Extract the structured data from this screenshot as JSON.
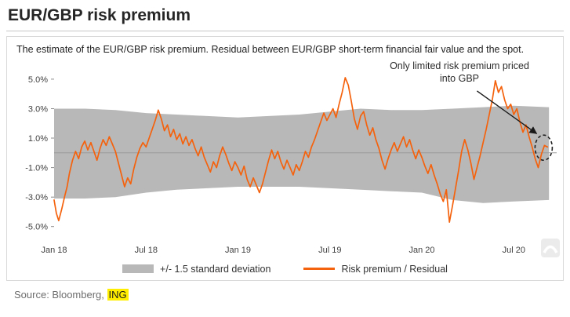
{
  "title": "EUR/GBP risk premium",
  "description": "The estimate of the EUR/GBP risk premium. Residual between EUR/GBP short-term financial fair value and the spot.",
  "source": {
    "prefix": "Source: Bloomberg, ",
    "link_label": "ING"
  },
  "colors": {
    "band": "#b8b8b8",
    "line": "#f5620d",
    "zero_line": "#9a9a9a",
    "axis_text": "#404040",
    "annotation": "#1a1a1a",
    "highlight_yellow": "#ffee00"
  },
  "chart_data": {
    "type": "line",
    "title": "EUR/GBP risk premium",
    "xlabel": "",
    "ylabel": "",
    "grid": false,
    "legend_position": "bottom",
    "x_axis": {
      "unit": "months since Jan 2018",
      "range": [
        0,
        32.8
      ],
      "ticks": [
        {
          "t": 0,
          "label": "Jan 18"
        },
        {
          "t": 6,
          "label": "Jul 18"
        },
        {
          "t": 12,
          "label": "Jan 19"
        },
        {
          "t": 18,
          "label": "Jul 19"
        },
        {
          "t": 24,
          "label": "Jan 20"
        },
        {
          "t": 30,
          "label": "Jul 20"
        }
      ]
    },
    "y_axis": {
      "unit": "%",
      "range": [
        -5.6,
        5.9
      ],
      "ticks": [
        {
          "v": 5,
          "label": "5.0%"
        },
        {
          "v": 3,
          "label": "3.0%"
        },
        {
          "v": 1,
          "label": "1.0%"
        },
        {
          "v": -1,
          "label": "-1.0%"
        },
        {
          "v": -3,
          "label": "-3.0%"
        },
        {
          "v": -5,
          "label": "-5.0%"
        }
      ]
    },
    "annotation": {
      "text": "Only limited risk premium priced into GBP",
      "arrow_from": [
        27.6,
        4.2
      ],
      "arrow_to": [
        31.5,
        1.3
      ],
      "circle": [
        31.95,
        0.35
      ]
    },
    "series": [
      {
        "name": "+/- 1.5 standard deviation",
        "type": "band",
        "color": "#b8b8b8",
        "points": [
          [
            0,
            -3.1,
            3.0
          ],
          [
            2,
            -3.1,
            3.0
          ],
          [
            4,
            -3.0,
            2.9
          ],
          [
            6,
            -2.7,
            2.7
          ],
          [
            8,
            -2.5,
            2.6
          ],
          [
            10,
            -2.4,
            2.5
          ],
          [
            12,
            -2.3,
            2.4
          ],
          [
            14,
            -2.3,
            2.5
          ],
          [
            16,
            -2.3,
            2.6
          ],
          [
            18,
            -2.4,
            2.8
          ],
          [
            20,
            -2.5,
            3.0
          ],
          [
            22,
            -2.6,
            2.9
          ],
          [
            24,
            -2.7,
            2.9
          ],
          [
            26,
            -3.2,
            3.0
          ],
          [
            28,
            -3.4,
            3.1
          ],
          [
            30,
            -3.3,
            3.2
          ],
          [
            32.3,
            -3.2,
            3.1
          ]
        ]
      },
      {
        "name": "Risk premium / Residual",
        "type": "line",
        "color": "#f5620d",
        "points": [
          [
            0,
            -3.2
          ],
          [
            0.15,
            -4.1
          ],
          [
            0.3,
            -4.6
          ],
          [
            0.5,
            -3.8
          ],
          [
            0.7,
            -2.9
          ],
          [
            0.85,
            -2.3
          ],
          [
            1.0,
            -1.4
          ],
          [
            1.2,
            -0.5
          ],
          [
            1.4,
            0.1
          ],
          [
            1.6,
            -0.4
          ],
          [
            1.8,
            0.4
          ],
          [
            2.0,
            0.8
          ],
          [
            2.2,
            0.2
          ],
          [
            2.4,
            0.7
          ],
          [
            2.6,
            0.1
          ],
          [
            2.8,
            -0.5
          ],
          [
            3.0,
            0.3
          ],
          [
            3.2,
            0.9
          ],
          [
            3.4,
            0.5
          ],
          [
            3.6,
            1.1
          ],
          [
            3.8,
            0.6
          ],
          [
            4.0,
            0.1
          ],
          [
            4.2,
            -0.7
          ],
          [
            4.4,
            -1.5
          ],
          [
            4.6,
            -2.3
          ],
          [
            4.8,
            -1.7
          ],
          [
            5.0,
            -2.1
          ],
          [
            5.2,
            -1.1
          ],
          [
            5.4,
            -0.3
          ],
          [
            5.6,
            0.3
          ],
          [
            5.8,
            0.7
          ],
          [
            6.0,
            0.4
          ],
          [
            6.2,
            1.0
          ],
          [
            6.4,
            1.6
          ],
          [
            6.6,
            2.2
          ],
          [
            6.8,
            2.9
          ],
          [
            7.0,
            2.3
          ],
          [
            7.2,
            1.5
          ],
          [
            7.4,
            1.9
          ],
          [
            7.6,
            1.1
          ],
          [
            7.8,
            1.6
          ],
          [
            8.0,
            0.9
          ],
          [
            8.2,
            1.3
          ],
          [
            8.4,
            0.6
          ],
          [
            8.6,
            1.1
          ],
          [
            8.8,
            0.5
          ],
          [
            9.0,
            0.9
          ],
          [
            9.2,
            0.3
          ],
          [
            9.4,
            -0.2
          ],
          [
            9.6,
            0.4
          ],
          [
            9.8,
            -0.3
          ],
          [
            10.0,
            -0.8
          ],
          [
            10.2,
            -1.3
          ],
          [
            10.4,
            -0.6
          ],
          [
            10.6,
            -1.0
          ],
          [
            10.8,
            -0.2
          ],
          [
            11.0,
            0.4
          ],
          [
            11.2,
            -0.1
          ],
          [
            11.4,
            -0.7
          ],
          [
            11.6,
            -1.2
          ],
          [
            11.8,
            -0.6
          ],
          [
            12.0,
            -1.0
          ],
          [
            12.2,
            -1.5
          ],
          [
            12.4,
            -0.9
          ],
          [
            12.6,
            -1.8
          ],
          [
            12.8,
            -2.3
          ],
          [
            13.0,
            -1.7
          ],
          [
            13.2,
            -2.2
          ],
          [
            13.4,
            -2.7
          ],
          [
            13.6,
            -2.1
          ],
          [
            13.8,
            -1.3
          ],
          [
            14.0,
            -0.5
          ],
          [
            14.2,
            0.2
          ],
          [
            14.4,
            -0.4
          ],
          [
            14.6,
            0.1
          ],
          [
            14.8,
            -0.6
          ],
          [
            15.0,
            -1.1
          ],
          [
            15.2,
            -0.5
          ],
          [
            15.4,
            -1.0
          ],
          [
            15.6,
            -1.5
          ],
          [
            15.8,
            -0.8
          ],
          [
            16.0,
            -1.2
          ],
          [
            16.2,
            -0.6
          ],
          [
            16.4,
            0.1
          ],
          [
            16.6,
            -0.3
          ],
          [
            16.8,
            0.4
          ],
          [
            17.0,
            0.9
          ],
          [
            17.2,
            1.5
          ],
          [
            17.4,
            2.1
          ],
          [
            17.6,
            2.7
          ],
          [
            17.8,
            2.2
          ],
          [
            18.0,
            2.6
          ],
          [
            18.2,
            3.0
          ],
          [
            18.4,
            2.4
          ],
          [
            18.6,
            3.3
          ],
          [
            18.8,
            4.1
          ],
          [
            19.0,
            5.1
          ],
          [
            19.2,
            4.6
          ],
          [
            19.4,
            3.5
          ],
          [
            19.6,
            2.3
          ],
          [
            19.8,
            1.6
          ],
          [
            20.0,
            2.5
          ],
          [
            20.2,
            2.8
          ],
          [
            20.4,
            1.9
          ],
          [
            20.6,
            1.2
          ],
          [
            20.8,
            1.7
          ],
          [
            21.0,
            0.9
          ],
          [
            21.2,
            0.3
          ],
          [
            21.4,
            -0.5
          ],
          [
            21.6,
            -1.1
          ],
          [
            21.8,
            -0.4
          ],
          [
            22.0,
            0.2
          ],
          [
            22.2,
            0.7
          ],
          [
            22.4,
            0.1
          ],
          [
            22.6,
            0.6
          ],
          [
            22.8,
            1.1
          ],
          [
            23.0,
            0.4
          ],
          [
            23.2,
            0.9
          ],
          [
            23.4,
            0.2
          ],
          [
            23.6,
            -0.4
          ],
          [
            23.8,
            0.2
          ],
          [
            24.0,
            -0.3
          ],
          [
            24.2,
            -0.9
          ],
          [
            24.4,
            -1.4
          ],
          [
            24.6,
            -0.8
          ],
          [
            24.8,
            -1.5
          ],
          [
            25.0,
            -2.1
          ],
          [
            25.2,
            -2.8
          ],
          [
            25.4,
            -3.3
          ],
          [
            25.6,
            -2.5
          ],
          [
            25.8,
            -4.7
          ],
          [
            26.0,
            -3.6
          ],
          [
            26.2,
            -2.4
          ],
          [
            26.4,
            -1.2
          ],
          [
            26.6,
            0.1
          ],
          [
            26.8,
            0.9
          ],
          [
            27.0,
            0.2
          ],
          [
            27.2,
            -0.7
          ],
          [
            27.4,
            -1.8
          ],
          [
            27.6,
            -1.0
          ],
          [
            27.8,
            -0.2
          ],
          [
            28.0,
            0.7
          ],
          [
            28.2,
            1.6
          ],
          [
            28.4,
            2.6
          ],
          [
            28.6,
            3.6
          ],
          [
            28.8,
            4.9
          ],
          [
            29.0,
            4.1
          ],
          [
            29.2,
            4.5
          ],
          [
            29.4,
            3.6
          ],
          [
            29.6,
            3.0
          ],
          [
            29.8,
            3.3
          ],
          [
            30.0,
            2.6
          ],
          [
            30.2,
            3.0
          ],
          [
            30.4,
            2.1
          ],
          [
            30.6,
            1.4
          ],
          [
            30.8,
            1.9
          ],
          [
            31.0,
            1.1
          ],
          [
            31.2,
            0.4
          ],
          [
            31.4,
            -0.4
          ],
          [
            31.6,
            -1.0
          ],
          [
            31.8,
            -0.1
          ],
          [
            32.0,
            0.5
          ],
          [
            32.2,
            0.4
          ]
        ]
      }
    ]
  }
}
